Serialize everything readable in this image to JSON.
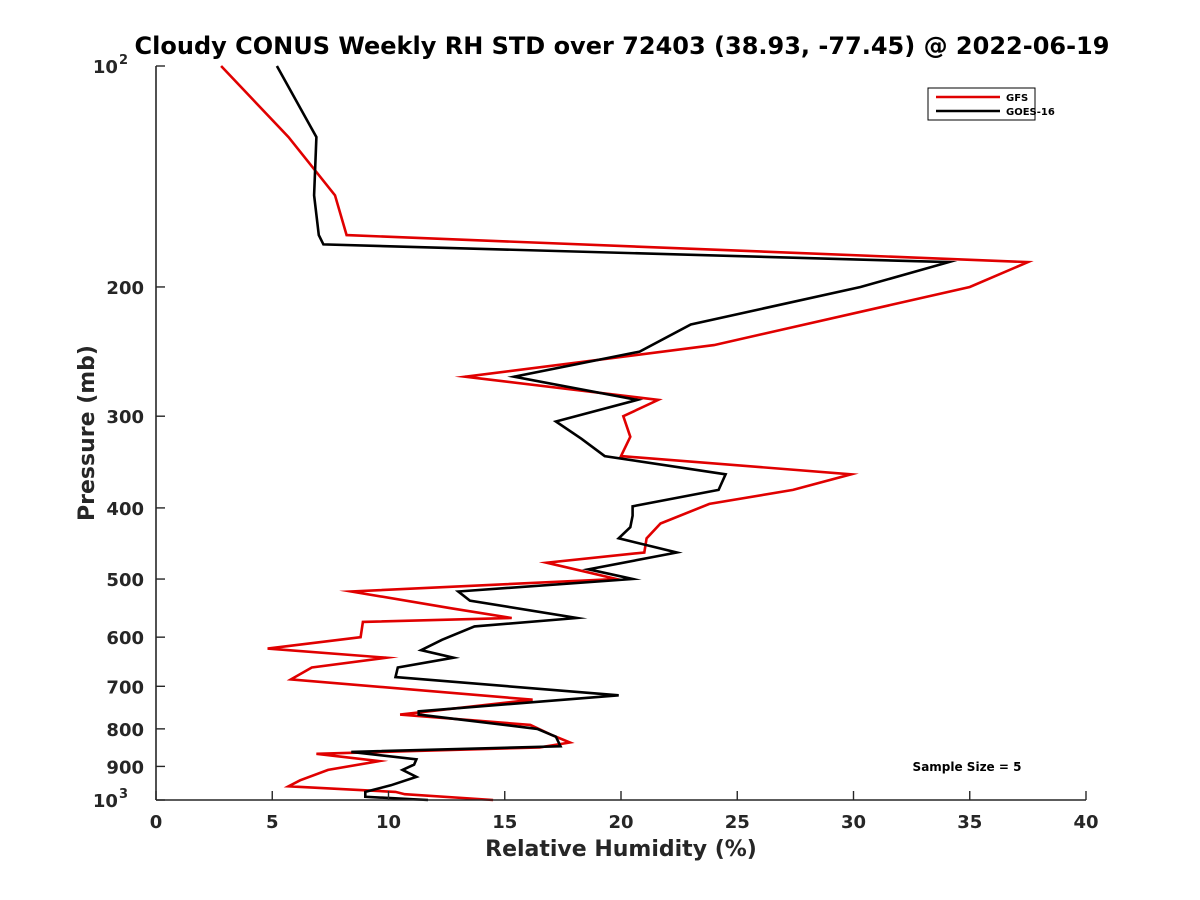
{
  "chart_data": {
    "type": "line",
    "title": "Cloudy CONUS Weekly RH STD over 72403 (38.93, -77.45) @ 2022-06-19",
    "xlabel": "Relative Humidity (%)",
    "ylabel": "Pressure (mb)",
    "xlim": [
      0,
      40
    ],
    "ylim": [
      100,
      1000
    ],
    "y_scale": "log",
    "y_reversed": true,
    "x_ticks": [
      "0",
      "5",
      "10",
      "15",
      "20",
      "25",
      "30",
      "35",
      "40"
    ],
    "y_ticks": [
      {
        "value": 100,
        "base": "10",
        "exp": "2"
      },
      {
        "value": 200,
        "label": "200"
      },
      {
        "value": 300,
        "label": "300"
      },
      {
        "value": 400,
        "label": "400"
      },
      {
        "value": 500,
        "label": "500"
      },
      {
        "value": 600,
        "label": "600"
      },
      {
        "value": 700,
        "label": "700"
      },
      {
        "value": 800,
        "label": "800"
      },
      {
        "value": 900,
        "label": "900"
      },
      {
        "value": 1000,
        "base": "10",
        "exp": "3"
      }
    ],
    "grid": false,
    "legend_position": "top-right",
    "series": [
      {
        "name": "GFS",
        "color": "#e00000",
        "points": [
          [
            2.8,
            100
          ],
          [
            5.7,
            125
          ],
          [
            7.7,
            150
          ],
          [
            8.2,
            170
          ],
          [
            37.5,
            185
          ],
          [
            35.0,
            200
          ],
          [
            24.0,
            240
          ],
          [
            13.3,
            265
          ],
          [
            21.6,
            285
          ],
          [
            20.1,
            300
          ],
          [
            20.4,
            320
          ],
          [
            20.0,
            340
          ],
          [
            29.9,
            360
          ],
          [
            27.4,
            378
          ],
          [
            23.8,
            395
          ],
          [
            21.7,
            420
          ],
          [
            21.1,
            440
          ],
          [
            21.0,
            460
          ],
          [
            16.8,
            475
          ],
          [
            19.8,
            500
          ],
          [
            8.4,
            520
          ],
          [
            12.7,
            548
          ],
          [
            15.3,
            565
          ],
          [
            8.9,
            572
          ],
          [
            8.8,
            600
          ],
          [
            4.8,
            622
          ],
          [
            9.9,
            640
          ],
          [
            6.7,
            660
          ],
          [
            5.8,
            685
          ],
          [
            16.2,
            730
          ],
          [
            10.5,
            765
          ],
          [
            16.1,
            790
          ],
          [
            17.0,
            815
          ],
          [
            17.8,
            835
          ],
          [
            16.5,
            848
          ],
          [
            6.9,
            865
          ],
          [
            9.6,
            885
          ],
          [
            7.4,
            910
          ],
          [
            6.2,
            940
          ],
          [
            5.7,
            958
          ],
          [
            10.3,
            975
          ],
          [
            10.7,
            982
          ],
          [
            14.5,
            1000
          ]
        ]
      },
      {
        "name": "GOES-16",
        "color": "#000000",
        "points": [
          [
            5.2,
            100
          ],
          [
            6.9,
            125
          ],
          [
            6.8,
            150
          ],
          [
            7.0,
            170
          ],
          [
            7.2,
            175
          ],
          [
            34.1,
            185
          ],
          [
            30.3,
            200
          ],
          [
            23.0,
            225
          ],
          [
            20.8,
            245
          ],
          [
            15.4,
            265
          ],
          [
            20.7,
            285
          ],
          [
            17.2,
            305
          ],
          [
            18.3,
            322
          ],
          [
            19.3,
            340
          ],
          [
            24.5,
            360
          ],
          [
            24.2,
            378
          ],
          [
            20.5,
            398
          ],
          [
            20.5,
            410
          ],
          [
            20.4,
            425
          ],
          [
            19.9,
            440
          ],
          [
            22.4,
            460
          ],
          [
            18.6,
            485
          ],
          [
            20.5,
            500
          ],
          [
            13.0,
            520
          ],
          [
            13.5,
            535
          ],
          [
            18.1,
            565
          ],
          [
            13.7,
            580
          ],
          [
            12.3,
            605
          ],
          [
            11.4,
            625
          ],
          [
            12.8,
            640
          ],
          [
            10.4,
            660
          ],
          [
            10.3,
            680
          ],
          [
            19.9,
            720
          ],
          [
            11.3,
            757
          ],
          [
            11.3,
            765
          ],
          [
            16.4,
            800
          ],
          [
            17.2,
            820
          ],
          [
            17.4,
            845
          ],
          [
            8.4,
            860
          ],
          [
            11.2,
            880
          ],
          [
            11.1,
            895
          ],
          [
            10.6,
            910
          ],
          [
            11.2,
            930
          ],
          [
            10.1,
            955
          ],
          [
            9.0,
            975
          ],
          [
            9.0,
            990
          ],
          [
            11.7,
            1000
          ]
        ]
      }
    ],
    "annotations": [
      "Sample Size = 5"
    ]
  }
}
